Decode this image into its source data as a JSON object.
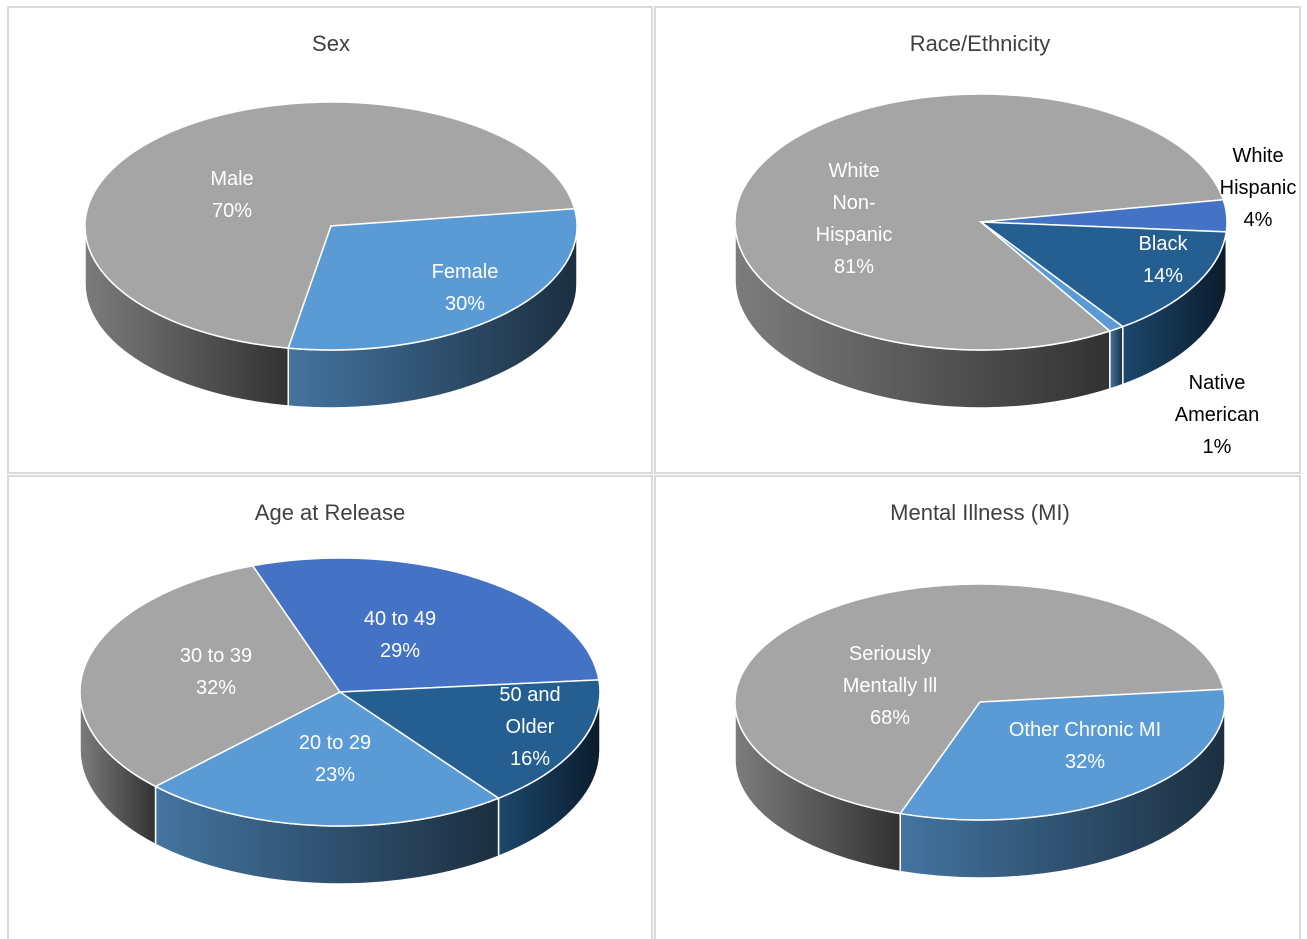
{
  "chart_data": [
    {
      "type": "pie",
      "title": "Sex",
      "categories": [
        "Male",
        "Female"
      ],
      "values": [
        70,
        30
      ],
      "value_labels": [
        "70%",
        "30%"
      ],
      "colors": [
        "#a5a5a5",
        "#5b9bd5"
      ]
    },
    {
      "type": "pie",
      "title": "Race/Ethnicity",
      "categories": [
        "White Non-Hispanic",
        "White Hispanic",
        "Black",
        "Native American"
      ],
      "values": [
        81,
        4,
        14,
        1
      ],
      "value_labels": [
        "81%",
        "4%",
        "14%",
        "1%"
      ],
      "colors": [
        "#a5a5a5",
        "#4472c4",
        "#255e91",
        "#5b9bd5"
      ]
    },
    {
      "type": "pie",
      "title": "Age at Release",
      "categories": [
        "20 to 29",
        "30 to 39",
        "40 to 49",
        "50 and Older"
      ],
      "values": [
        23,
        32,
        29,
        16
      ],
      "value_labels": [
        "23%",
        "32%",
        "29%",
        "16%"
      ],
      "colors": [
        "#5b9bd5",
        "#a5a5a5",
        "#4472c4",
        "#255e91"
      ]
    },
    {
      "type": "pie",
      "title": "Mental Illness (MI)",
      "categories": [
        "Seriously Mentally Ill",
        "Other Chronic MI"
      ],
      "values": [
        68,
        32
      ],
      "value_labels": [
        "68%",
        "32%"
      ],
      "colors": [
        "#a5a5a5",
        "#5b9bd5"
      ]
    }
  ]
}
